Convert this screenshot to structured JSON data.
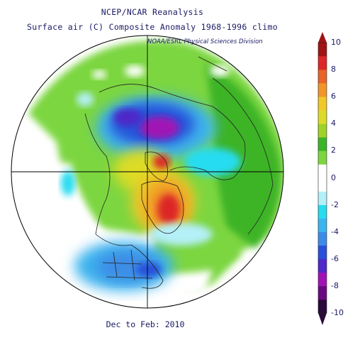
{
  "titles": {
    "line1": "NCEP/NCAR Reanalysis",
    "line2": "Surface air (C) Composite Anomaly 1968-1996 climo",
    "credit": "NOAA/ESRL Physical Sciences Division",
    "footer": "Dec to Feb: 2010"
  },
  "colorbar": {
    "ticks": [
      "10",
      "8",
      "6",
      "4",
      "2",
      "0",
      "-2",
      "-4",
      "-6",
      "-8",
      "-10"
    ],
    "colors": [
      "#2a0a3a",
      "#6a0a80",
      "#a014b4",
      "#5028c8",
      "#2850d8",
      "#3c8ce6",
      "#3cb4ee",
      "#28dcf0",
      "#b4f0f8",
      "#ffffff",
      "#ffffff",
      "#7cd640",
      "#3cb428",
      "#a0d228",
      "#dcdc28",
      "#f0c828",
      "#f09628",
      "#e86428",
      "#dc2828",
      "#a01414"
    ]
  },
  "map": {
    "projection": "north-polar-stereographic",
    "land_outline_color": "#222222",
    "grid_color": "#000000"
  }
}
